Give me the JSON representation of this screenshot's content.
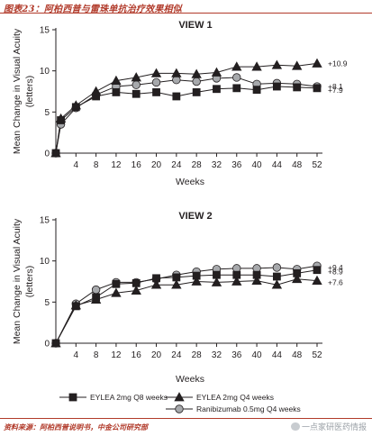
{
  "header": {
    "title": "图表23：阿柏西普与雷珠单抗治疗效果相似"
  },
  "footer": {
    "source": "资料来源：阿柏西普说明书，中金公司研究部",
    "watermark": "一点家研医药情报"
  },
  "colors": {
    "series_fill_1": "#231f20",
    "series_fill_2": "#231f20",
    "series_fill_3": "#a7a9ac",
    "axis": "#231f20",
    "header": "#b13a2a"
  },
  "legend": [
    {
      "name": "EYLEA 2mg Q8 weeks",
      "marker": "square"
    },
    {
      "name": "EYLEA 2mg Q4 weeks",
      "marker": "triangle"
    },
    {
      "name": "Ranibizumab 0.5mg Q4 weeks",
      "marker": "circle"
    }
  ],
  "chart_data": [
    {
      "type": "line",
      "title": "VIEW 1",
      "xlabel": "Weeks",
      "ylabel_line1": "Mean Change in Visual Acuity",
      "ylabel_line2": "(letters)",
      "ylim": [
        0,
        15
      ],
      "xlim": [
        0,
        52
      ],
      "yticks": [
        0,
        5,
        10,
        15
      ],
      "xticks": [
        4,
        8,
        12,
        16,
        20,
        24,
        28,
        32,
        36,
        40,
        44,
        48,
        52
      ],
      "x": [
        0,
        1,
        4,
        8,
        12,
        16,
        20,
        24,
        28,
        32,
        36,
        40,
        44,
        48,
        52
      ],
      "series": [
        {
          "name": "EYLEA 2mg Q8 weeks",
          "values": [
            0,
            4.0,
            5.6,
            6.9,
            7.4,
            7.2,
            7.4,
            6.9,
            7.4,
            7.8,
            7.9,
            7.7,
            8.1,
            8.0,
            7.9
          ],
          "end_label": "+7.9"
        },
        {
          "name": "EYLEA 2mg Q4 weeks",
          "values": [
            0,
            4.2,
            5.8,
            7.5,
            8.8,
            9.2,
            9.7,
            9.7,
            9.6,
            9.8,
            10.5,
            10.5,
            10.7,
            10.6,
            10.9
          ],
          "end_label": "+10.9"
        },
        {
          "name": "Ranibizumab 0.5mg Q4 weeks",
          "values": [
            0,
            3.5,
            5.5,
            7.1,
            8.1,
            8.3,
            8.6,
            8.9,
            8.7,
            9.1,
            9.2,
            8.4,
            8.5,
            8.4,
            8.1
          ],
          "end_label": "+8.1"
        }
      ]
    },
    {
      "type": "line",
      "title": "VIEW 2",
      "xlabel": "Weeks",
      "ylabel_line1": "Mean Change in Visual Acuity",
      "ylabel_line2": "(letters)",
      "ylim": [
        0,
        15
      ],
      "xlim": [
        0,
        52
      ],
      "yticks": [
        0,
        5,
        10,
        15
      ],
      "xticks": [
        4,
        8,
        12,
        16,
        20,
        24,
        28,
        32,
        36,
        40,
        44,
        48,
        52
      ],
      "x": [
        0,
        4,
        8,
        12,
        16,
        20,
        24,
        28,
        32,
        36,
        40,
        44,
        48,
        52
      ],
      "series": [
        {
          "name": "EYLEA 2mg Q8 weeks",
          "values": [
            0,
            4.5,
            5.6,
            7.2,
            7.3,
            7.9,
            8.0,
            8.2,
            8.3,
            8.3,
            8.3,
            8.1,
            8.5,
            8.9
          ],
          "end_label": "+8.9"
        },
        {
          "name": "EYLEA 2mg Q4 weeks",
          "values": [
            0,
            4.6,
            5.3,
            6.1,
            6.4,
            7.1,
            7.1,
            7.5,
            7.4,
            7.5,
            7.6,
            7.1,
            7.8,
            7.6
          ],
          "end_label": "+7.6"
        },
        {
          "name": "Ranibizumab 0.5mg Q4 weeks",
          "values": [
            0,
            4.8,
            6.5,
            7.4,
            7.4,
            7.8,
            8.3,
            8.7,
            9.0,
            9.1,
            9.1,
            9.2,
            9.0,
            9.4
          ],
          "end_label": "+9.4"
        }
      ]
    }
  ]
}
